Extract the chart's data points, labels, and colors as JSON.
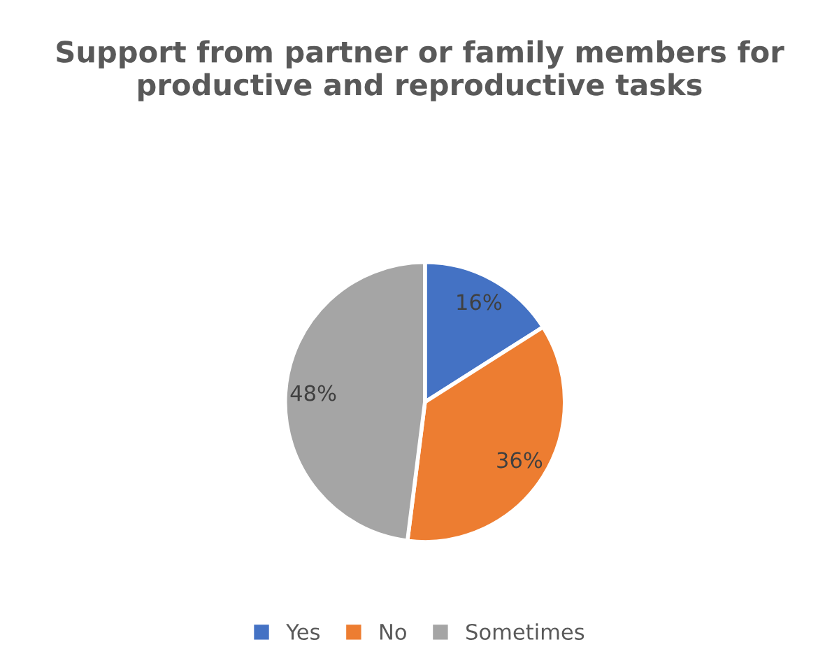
{
  "chart_data": {
    "type": "pie",
    "title": "Support from partner or family members for productive and reproductive tasks",
    "categories": [
      "Yes",
      "No",
      "Sometimes"
    ],
    "values": [
      16,
      36,
      48
    ],
    "value_labels": [
      "16%",
      "36%",
      "48%"
    ],
    "colors": [
      "#4472c4",
      "#ed7d31",
      "#a5a5a5"
    ],
    "legend": "bottom"
  }
}
